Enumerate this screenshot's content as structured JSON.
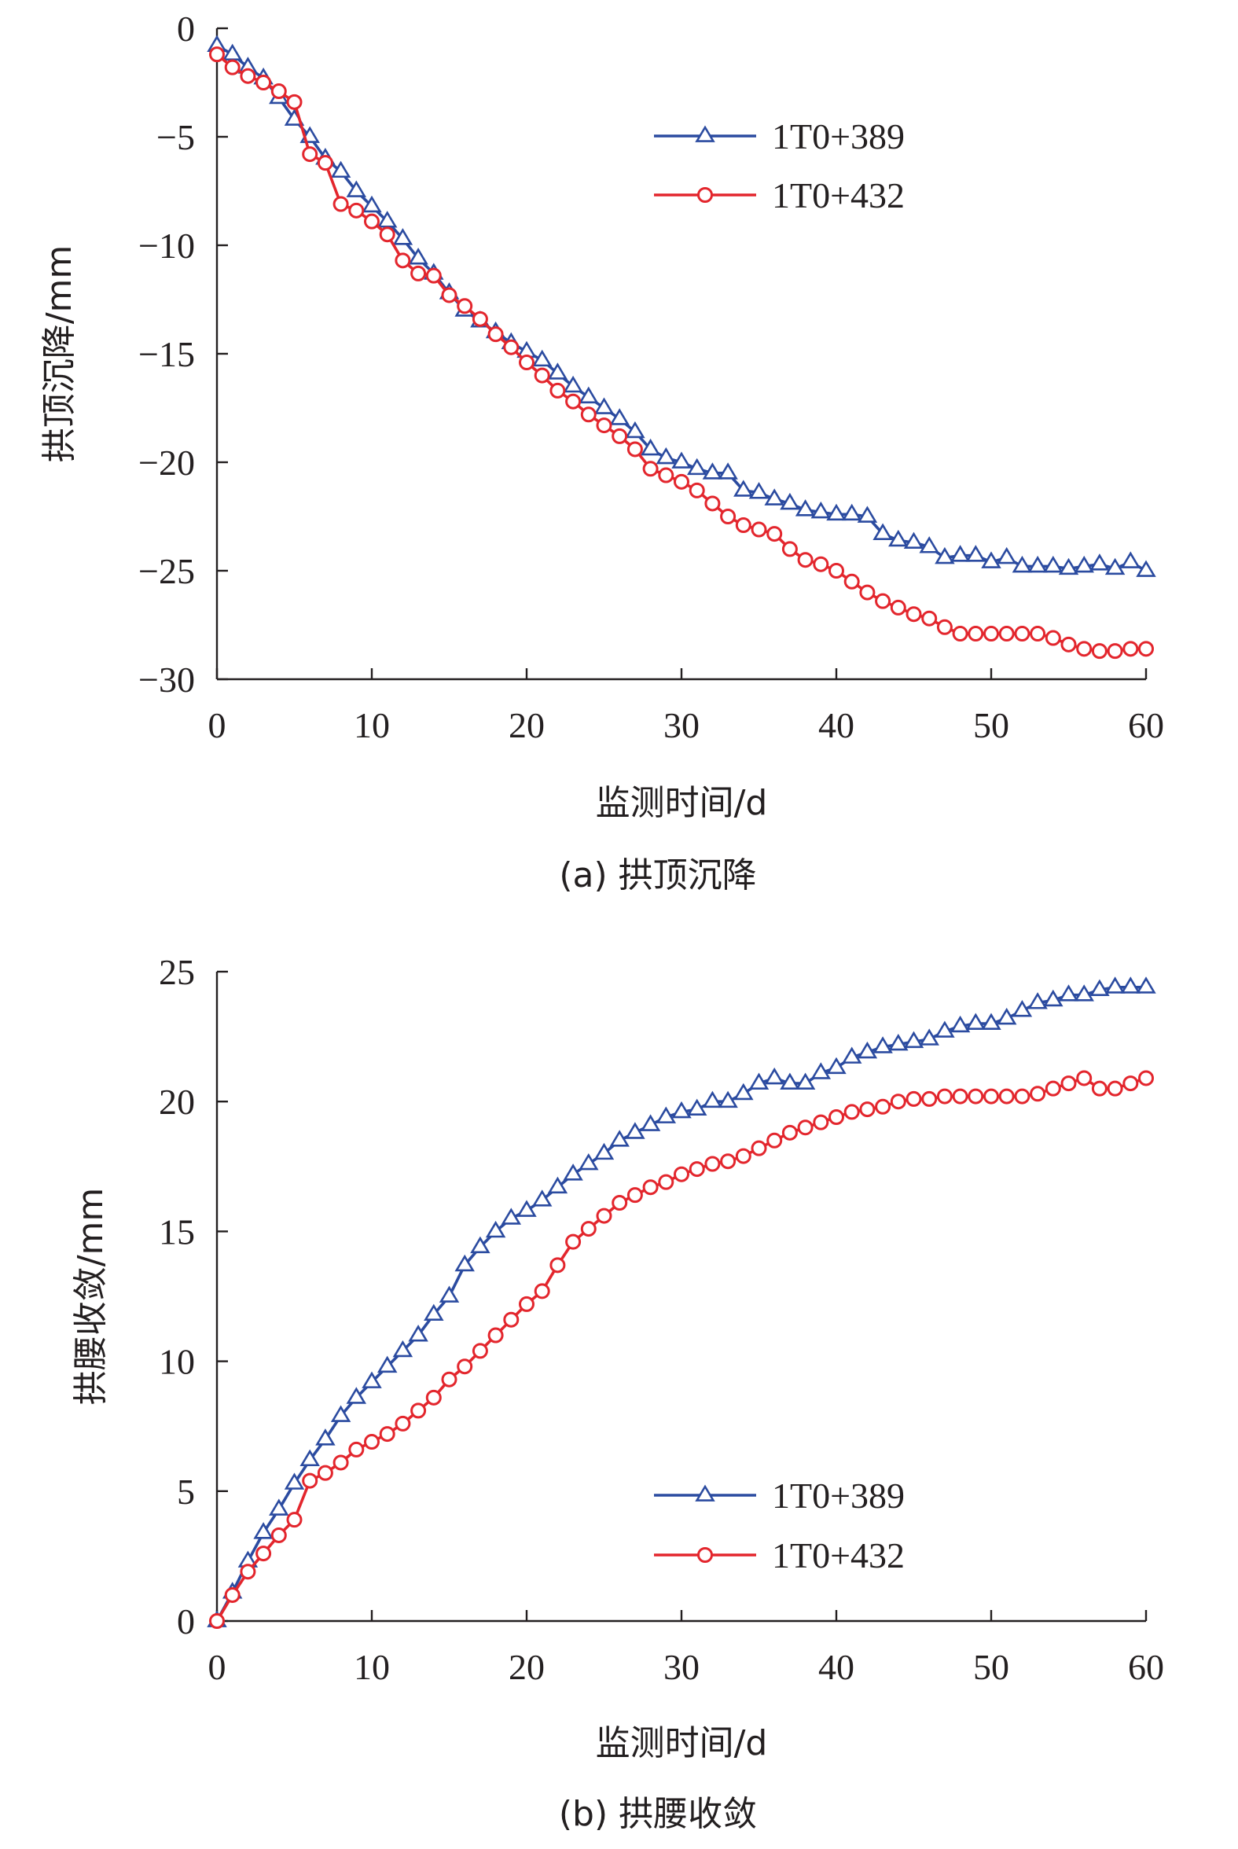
{
  "chart_data": [
    {
      "type": "line",
      "caption": "(a) 拱顶沉降",
      "xlabel": "监测时间/d",
      "ylabel": "拱顶沉降/mm",
      "xlim": [
        0,
        60
      ],
      "ylim": [
        -30,
        0
      ],
      "xticks": [
        0,
        10,
        20,
        30,
        40,
        50,
        60
      ],
      "yticks": [
        0,
        -5,
        -10,
        -15,
        -20,
        -25,
        -30
      ],
      "xtick_labels": [
        "0",
        "10",
        "20",
        "30",
        "40",
        "50",
        "60"
      ],
      "ytick_labels": [
        "0",
        "−5",
        "−10",
        "−15",
        "−20",
        "−25",
        "−30"
      ],
      "legend_position": "top-right",
      "grid": false,
      "x": [
        0,
        1,
        2,
        3,
        4,
        5,
        6,
        7,
        8,
        9,
        10,
        11,
        12,
        13,
        14,
        15,
        16,
        17,
        18,
        19,
        20,
        21,
        22,
        23,
        24,
        25,
        26,
        27,
        28,
        29,
        30,
        31,
        32,
        33,
        34,
        35,
        36,
        37,
        38,
        39,
        40,
        41,
        42,
        43,
        44,
        45,
        46,
        47,
        48,
        49,
        50,
        51,
        52,
        53,
        54,
        55,
        56,
        57,
        58,
        59,
        60
      ],
      "series": [
        {
          "name": "1T0+389",
          "color": "#2b4ba0",
          "marker": "triangle",
          "values": [
            -0.8,
            -1.2,
            -1.8,
            -2.3,
            -3.2,
            -4.2,
            -5,
            -6,
            -6.6,
            -7.5,
            -8.2,
            -8.9,
            -9.7,
            -10.6,
            -11.3,
            -12.2,
            -13,
            -13.5,
            -14,
            -14.5,
            -14.9,
            -15.3,
            -15.9,
            -16.5,
            -17,
            -17.5,
            -18,
            -18.6,
            -19.4,
            -19.8,
            -20,
            -20.3,
            -20.5,
            -20.5,
            -21.3,
            -21.4,
            -21.7,
            -21.9,
            -22.2,
            -22.3,
            -22.4,
            -22.4,
            -22.5,
            -23.3,
            -23.6,
            -23.7,
            -23.9,
            -24.4,
            -24.3,
            -24.3,
            -24.6,
            -24.4,
            -24.8,
            -24.8,
            -24.8,
            -24.9,
            -24.8,
            -24.7,
            -24.9,
            -24.6,
            -25.0
          ]
        },
        {
          "name": "1T0+432",
          "color": "#e3262d",
          "marker": "circle",
          "values": [
            -1.2,
            -1.8,
            -2.2,
            -2.5,
            -2.9,
            -3.4,
            -5.8,
            -6.2,
            -8.1,
            -8.4,
            -8.9,
            -9.5,
            -10.7,
            -11.3,
            -11.4,
            -12.3,
            -12.8,
            -13.4,
            -14.1,
            -14.7,
            -15.4,
            -16,
            -16.7,
            -17.2,
            -17.8,
            -18.3,
            -18.8,
            -19.4,
            -20.3,
            -20.6,
            -20.9,
            -21.3,
            -21.9,
            -22.5,
            -22.9,
            -23.1,
            -23.3,
            -24,
            -24.5,
            -24.7,
            -25,
            -25.5,
            -26,
            -26.4,
            -26.7,
            -27,
            -27.2,
            -27.6,
            -27.9,
            -27.9,
            -27.9,
            -27.9,
            -27.9,
            -27.9,
            -28.1,
            -28.4,
            -28.6,
            -28.7,
            -28.7,
            -28.6,
            -28.6
          ]
        }
      ]
    },
    {
      "type": "line",
      "caption": "(b) 拱腰收敛",
      "xlabel": "监测时间/d",
      "ylabel": "拱腰收敛/mm",
      "xlim": [
        0,
        60
      ],
      "ylim": [
        0,
        25
      ],
      "xticks": [
        0,
        10,
        20,
        30,
        40,
        50,
        60
      ],
      "yticks": [
        0,
        5,
        10,
        15,
        20,
        25
      ],
      "xtick_labels": [
        "0",
        "10",
        "20",
        "30",
        "40",
        "50",
        "60"
      ],
      "ytick_labels": [
        "0",
        "5",
        "10",
        "15",
        "20",
        "25"
      ],
      "legend_position": "bottom-right",
      "grid": false,
      "x": [
        0,
        1,
        2,
        3,
        4,
        5,
        6,
        7,
        8,
        9,
        10,
        11,
        12,
        13,
        14,
        15,
        16,
        17,
        18,
        19,
        20,
        21,
        22,
        23,
        24,
        25,
        26,
        27,
        28,
        29,
        30,
        31,
        32,
        33,
        34,
        35,
        36,
        37,
        38,
        39,
        40,
        41,
        42,
        43,
        44,
        45,
        46,
        47,
        48,
        49,
        50,
        51,
        52,
        53,
        54,
        55,
        56,
        57,
        58,
        59,
        60
      ],
      "series": [
        {
          "name": "1T0+389",
          "color": "#2b4ba0",
          "marker": "triangle",
          "values": [
            0,
            1.1,
            2.3,
            3.4,
            4.3,
            5.3,
            6.2,
            7,
            7.9,
            8.6,
            9.2,
            9.8,
            10.4,
            11,
            11.8,
            12.5,
            13.7,
            14.4,
            15,
            15.5,
            15.8,
            16.2,
            16.7,
            17.2,
            17.6,
            18,
            18.5,
            18.8,
            19.1,
            19.4,
            19.6,
            19.7,
            20,
            20,
            20.3,
            20.7,
            20.9,
            20.7,
            20.7,
            21.1,
            21.3,
            21.7,
            21.9,
            22.1,
            22.2,
            22.3,
            22.4,
            22.7,
            22.9,
            23,
            23,
            23.2,
            23.5,
            23.8,
            23.9,
            24.1,
            24.1,
            24.3,
            24.4,
            24.4,
            24.4
          ]
        },
        {
          "name": "1T0+432",
          "color": "#e3262d",
          "marker": "circle",
          "values": [
            0,
            1.0,
            1.9,
            2.6,
            3.3,
            3.9,
            5.4,
            5.7,
            6.1,
            6.6,
            6.9,
            7.2,
            7.6,
            8.1,
            8.6,
            9.3,
            9.8,
            10.4,
            11,
            11.6,
            12.2,
            12.7,
            13.7,
            14.6,
            15.1,
            15.6,
            16.1,
            16.4,
            16.7,
            16.9,
            17.2,
            17.4,
            17.6,
            17.7,
            17.9,
            18.2,
            18.5,
            18.8,
            19,
            19.2,
            19.4,
            19.6,
            19.7,
            19.8,
            20,
            20.1,
            20.1,
            20.2,
            20.2,
            20.2,
            20.2,
            20.2,
            20.2,
            20.3,
            20.5,
            20.7,
            20.9,
            20.5,
            20.5,
            20.7,
            20.9
          ]
        }
      ]
    }
  ]
}
